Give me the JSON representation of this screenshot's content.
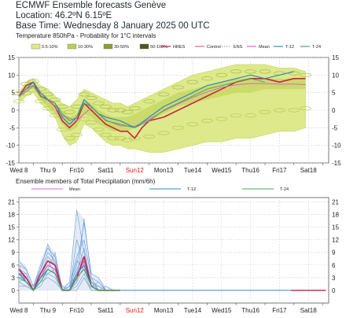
{
  "header": {
    "line1": "ECMWF Ensemble forecasts Genève",
    "line2": "Location:  46.2ºN 6.15ºE",
    "line3": "Base Time: Wednesday  8 January 2025 00 UTC"
  },
  "colors": {
    "hres": "#cc2244",
    "control": "#dd6688",
    "ens": "#8fb0d0",
    "mean": "#e060d0",
    "t12": "#2f86c8",
    "t24": "#44aa55",
    "prob1": "#dde98a",
    "prob2": "#b9cf52",
    "prob3": "#8c9d3a",
    "prob4": "#4e5520",
    "sun": "#e02020",
    "members": "#6a9ad8"
  },
  "chart_data": [
    {
      "type": "line",
      "title": "Temperature 850hPa - Probability for 1°C intervals",
      "ylim": [
        -15,
        15
      ],
      "yticks": [
        -15,
        -10,
        -5,
        0,
        5,
        10,
        15
      ],
      "xlim": [
        0,
        10.7
      ],
      "xticks": [
        {
          "label": "Wed 8",
          "x": 0,
          "sunday": false
        },
        {
          "label": "Thu 9",
          "x": 1,
          "sunday": false
        },
        {
          "label": "Fri10",
          "x": 2,
          "sunday": false
        },
        {
          "label": "Sat11",
          "x": 3,
          "sunday": false
        },
        {
          "label": "Sun12",
          "x": 4,
          "sunday": true
        },
        {
          "label": "Mon13",
          "x": 5,
          "sunday": false
        },
        {
          "label": "Tue14",
          "x": 6,
          "sunday": false
        },
        {
          "label": "Wed15",
          "x": 7,
          "sunday": false
        },
        {
          "label": "Thu16",
          "x": 8,
          "sunday": false
        },
        {
          "label": "Fri17",
          "x": 9,
          "sunday": false
        },
        {
          "label": "Sat18",
          "x": 10,
          "sunday": false
        }
      ],
      "legend": [
        "0.5-10%",
        "10-30%",
        "30-50%",
        "50-100%",
        "HRES",
        "Control",
        "ENS",
        "Mean",
        "T-12",
        "T-24"
      ],
      "band": {
        "x": [
          0,
          0.25,
          0.5,
          0.75,
          1,
          1.25,
          1.5,
          1.75,
          2,
          2.25,
          2.5,
          2.75,
          3,
          3.25,
          3.5,
          3.75,
          4,
          4.5,
          5,
          5.5,
          6,
          6.5,
          7,
          7.5,
          8,
          8.5,
          9,
          9.5,
          9.9
        ],
        "low": [
          2,
          4,
          5,
          2,
          0,
          -2,
          -7,
          -10,
          -9,
          -4,
          -5,
          -7,
          -9,
          -10,
          -10,
          -11,
          -11,
          -12,
          -12,
          -11,
          -10,
          -9,
          -9,
          -8,
          -8,
          -7,
          -6,
          -6,
          -5
        ],
        "high": [
          5,
          8,
          9,
          7,
          6,
          4,
          2,
          1,
          3,
          6,
          5,
          4,
          3,
          2,
          2,
          1,
          2,
          4,
          6,
          8,
          10,
          11,
          12,
          13,
          13,
          13,
          12,
          12,
          11
        ],
        "core_low": [
          3,
          5.5,
          6.5,
          3,
          1,
          -1,
          -4,
          -6,
          -5,
          -1,
          -2,
          -4,
          -5,
          -6,
          -6,
          -6,
          -5,
          -3,
          -1,
          1,
          2,
          3,
          4,
          5,
          5,
          6,
          6,
          6,
          6
        ],
        "core_high": [
          4.5,
          7,
          7.5,
          5,
          3,
          2,
          0,
          -2,
          -1,
          3,
          2,
          0,
          -1,
          -2,
          -2,
          -2,
          -1,
          1,
          3,
          5,
          6,
          7,
          8,
          9,
          9,
          9,
          9,
          9,
          9
        ]
      },
      "series": [
        {
          "name": "HRES",
          "x": [
            0,
            0.25,
            0.5,
            0.75,
            1,
            1.25,
            1.5,
            1.75,
            2,
            2.25,
            2.5,
            2.75,
            3,
            3.25,
            3.5,
            3.75,
            4,
            4.25,
            4.5,
            5,
            5.5,
            6,
            6.5,
            7,
            7.5,
            8,
            8.5,
            9,
            9.5,
            9.9
          ],
          "y": [
            4,
            7,
            8,
            4,
            3,
            1,
            -3,
            -5,
            -3,
            2,
            0,
            -2,
            -4,
            -5,
            -6,
            -6,
            -8,
            -5,
            -3,
            -2,
            0,
            2,
            4,
            6,
            8,
            9,
            9,
            8,
            9,
            9
          ]
        },
        {
          "name": "Mean",
          "x": [
            0,
            0.5,
            1,
            1.5,
            2,
            2.5,
            3,
            3.5,
            4,
            4.5,
            5,
            5.5,
            6,
            6.5,
            7,
            7.5,
            8,
            8.5,
            9,
            9.5,
            9.9
          ],
          "y": [
            3.8,
            6.8,
            3.2,
            -1.6,
            -3,
            0.8,
            -2.8,
            -4.4,
            -4.6,
            -2.6,
            -0.2,
            1.8,
            3.6,
            5.2,
            6.5,
            7.2,
            7.6,
            7.6,
            7.4,
            7.4,
            7.3
          ]
        },
        {
          "name": "T-12",
          "x": [
            0,
            0.25,
            0.5,
            0.75,
            1,
            1.25,
            1.5,
            1.75,
            2,
            2.25,
            2.5,
            2.75,
            3,
            3.5,
            4,
            4.5,
            5,
            5.5,
            6,
            6.5,
            7,
            7.5,
            8,
            8.5,
            9,
            9.5
          ],
          "y": [
            4,
            6,
            8,
            5,
            3,
            2,
            -2,
            -4,
            -2,
            3,
            1,
            -1,
            -2,
            -3,
            -5,
            -2,
            1,
            3,
            5,
            7,
            8,
            9,
            10,
            9,
            10,
            11
          ]
        },
        {
          "name": "T-24",
          "x": [
            0,
            0.25,
            0.5,
            0.75,
            1,
            1.25,
            1.5,
            1.75,
            2,
            2.25,
            2.5,
            2.75,
            3,
            3.5,
            4,
            4.5,
            5,
            5.5,
            6,
            6.5,
            7,
            7.5,
            8,
            8.5
          ],
          "y": [
            4,
            6,
            7,
            4,
            3,
            2,
            -1,
            -3,
            -2,
            2,
            1,
            -1,
            -3,
            -4,
            -5,
            -3,
            0,
            2,
            4,
            6,
            7,
            8,
            9,
            8
          ]
        }
      ]
    },
    {
      "type": "line",
      "title": "Ensemble members of Total Precipitation (mm/6h)",
      "ylim": [
        -3,
        22
      ],
      "yticks": [
        0,
        3,
        6,
        9,
        12,
        15,
        18,
        21
      ],
      "xlim": [
        0,
        10.7
      ],
      "legend": [
        "Mean",
        "T-12",
        "T-24"
      ],
      "x": [
        0,
        0.25,
        0.5,
        0.75,
        1,
        1.25,
        1.5,
        1.75,
        2,
        2.25,
        2.5,
        2.75,
        3,
        3.25,
        3.5
      ],
      "mean": [
        4,
        3,
        0,
        3,
        6,
        5,
        0,
        0,
        3,
        7,
        1,
        0,
        0,
        0,
        0
      ],
      "spread_max": [
        7,
        6,
        1,
        7,
        11,
        9,
        1,
        2,
        19,
        17,
        4,
        3,
        1,
        0.5,
        0
      ],
      "members": [
        [
          3,
          2,
          0,
          2,
          5,
          4,
          0,
          0,
          2,
          6,
          1,
          0,
          0,
          0,
          0
        ],
        [
          5,
          4,
          0,
          4,
          7,
          6,
          0,
          1,
          5,
          8,
          2,
          1,
          0,
          0,
          0
        ],
        [
          2,
          1,
          0,
          1,
          4,
          3,
          0,
          0,
          1,
          4,
          0,
          0,
          0,
          0,
          0
        ],
        [
          6,
          5,
          1,
          5,
          9,
          7,
          0,
          1,
          8,
          12,
          3,
          2,
          0,
          0,
          0
        ],
        [
          4,
          3,
          0,
          3,
          6,
          5,
          1,
          0,
          3,
          7,
          1,
          0,
          1,
          0,
          0
        ],
        [
          1,
          1,
          0,
          2,
          3,
          2,
          0,
          0,
          0,
          3,
          0,
          0,
          0,
          0,
          0
        ],
        [
          7,
          5,
          1,
          6,
          10,
          8,
          0,
          2,
          19,
          9,
          2,
          1,
          0,
          0,
          0
        ],
        [
          3,
          3,
          0,
          4,
          8,
          6,
          1,
          0,
          6,
          16,
          4,
          3,
          0,
          0,
          0
        ],
        [
          5,
          2,
          0,
          2,
          5,
          9,
          0,
          1,
          4,
          10,
          1,
          1,
          0,
          0,
          0
        ],
        [
          4,
          4,
          0,
          3,
          7,
          4,
          0,
          0,
          12,
          6,
          2,
          0,
          0,
          0,
          0
        ],
        [
          2,
          3,
          0,
          5,
          11,
          6,
          0,
          1,
          7,
          5,
          1,
          2,
          0,
          0,
          0
        ],
        [
          6,
          2,
          1,
          3,
          4,
          5,
          0,
          0,
          2,
          17,
          3,
          0,
          0,
          0,
          0
        ]
      ],
      "series": [
        {
          "name": "HRES",
          "y": [
            5,
            3,
            0,
            4,
            7,
            6,
            0,
            0,
            3,
            8,
            1,
            0,
            0,
            0,
            0
          ]
        },
        {
          "name": "T-12",
          "y": [
            4,
            2,
            0,
            3,
            5,
            4,
            0,
            0,
            4,
            6,
            1,
            0,
            0,
            0,
            0
          ]
        },
        {
          "name": "T-24",
          "y": [
            3,
            2,
            0,
            2,
            5,
            4,
            0,
            0,
            3,
            5,
            1,
            0,
            0,
            0,
            0
          ]
        }
      ]
    }
  ]
}
